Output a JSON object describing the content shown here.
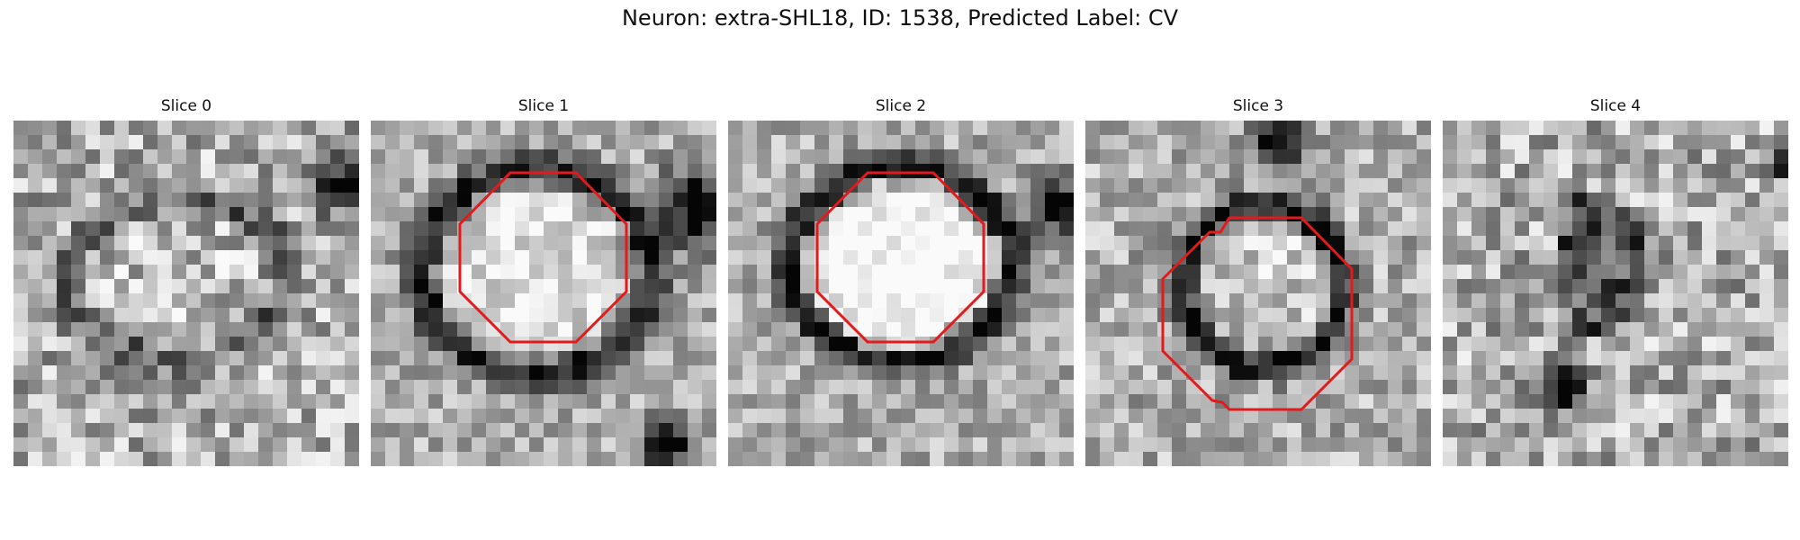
{
  "figure": {
    "title": "Neuron: extra-SHL18, ID: 1538, Predicted Label: CV"
  },
  "panels": [
    {
      "title": "Slice 0",
      "has_outline": false
    },
    {
      "title": "Slice 1",
      "has_outline": true
    },
    {
      "title": "Slice 2",
      "has_outline": true
    },
    {
      "title": "Slice 3",
      "has_outline": true
    },
    {
      "title": "Slice 4",
      "has_outline": false
    }
  ],
  "colors": {
    "outline": "#e31a1c",
    "background": "#ffffff"
  }
}
